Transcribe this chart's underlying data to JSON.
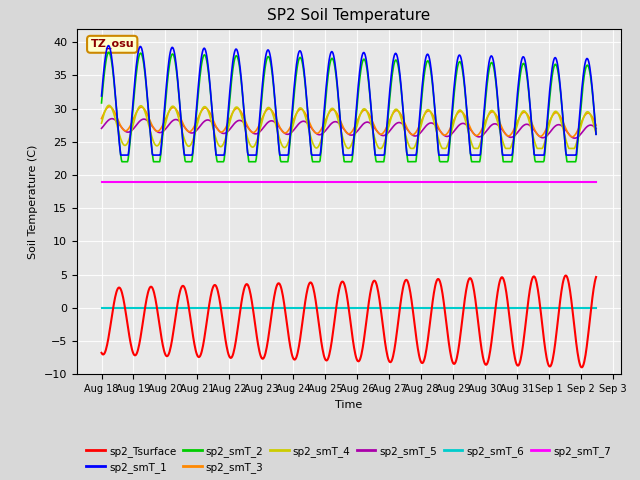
{
  "title": "SP2 Soil Temperature",
  "ylabel": "Soil Temperature (C)",
  "xlabel": "Time",
  "ylim": [
    -10,
    42
  ],
  "yticks": [
    -10,
    -5,
    0,
    5,
    10,
    15,
    20,
    25,
    30,
    35,
    40
  ],
  "background_color": "#d8d8d8",
  "plot_bg_color": "#e8e8e8",
  "tz_label": "TZ_osu",
  "series_colors": {
    "sp2_Tsurface": "#ff0000",
    "sp2_smT_1": "#0000ff",
    "sp2_smT_2": "#00cc00",
    "sp2_smT_3": "#ff8800",
    "sp2_smT_4": "#cccc00",
    "sp2_smT_5": "#aa00aa",
    "sp2_smT_6": "#00cccc",
    "sp2_smT_7": "#ff00ff"
  },
  "n_points": 800,
  "smT7_value": 18.9,
  "smT6_value": 0.0
}
